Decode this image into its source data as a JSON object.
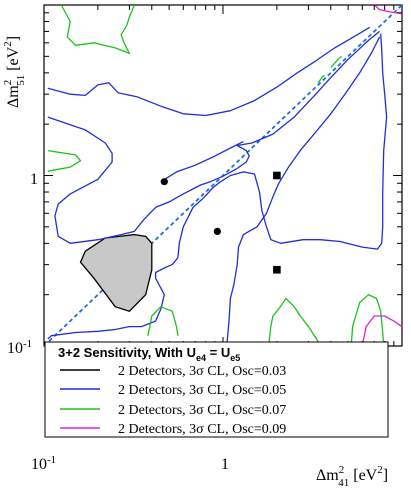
{
  "chart_data": {
    "type": "line",
    "title": "",
    "xlabel_main": "Δm",
    "xlabel_sup": "2",
    "xlabel_sub": "41",
    "xlabel_unit_a": " [eV",
    "xlabel_unit_sup": "2",
    "xlabel_unit_b": "]",
    "ylabel_main": "Δm",
    "ylabel_sup": "2",
    "ylabel_sub": "51",
    "ylabel_unit_a": " [eV",
    "ylabel_unit_sup": "2",
    "ylabel_unit_b": "]",
    "xscale": "log",
    "yscale": "log",
    "xlim": [
      0.1,
      10
    ],
    "ylim": [
      0.1,
      10
    ],
    "x_ticklabels": {
      "t0": "10",
      "t0_exp": "-1",
      "t1": "1"
    },
    "y_ticklabels": {
      "t0": "10",
      "t0_exp": "-1",
      "t1": "1"
    },
    "grid": false,
    "legend": {
      "placement": "bottom-left",
      "title_a": "3+2 Sensitivity, With U",
      "title_sub1": "e4",
      "title_b": " = U",
      "title_sub2": "e5",
      "entries": [
        {
          "label": "2 Detectors, 3σ CL, Osc=0.03",
          "color": "#000000"
        },
        {
          "label": "2 Detectors, 3σ CL, Osc=0.05",
          "color": "#1f2fd6"
        },
        {
          "label": "2 Detectors, 3σ CL, Osc=0.07",
          "color": "#19c419"
        },
        {
          "label": "2 Detectors, 3σ CL, Osc=0.09",
          "color": "#e020e0"
        }
      ]
    },
    "diagonal": {
      "color": "#1f6fd6",
      "style": "dashed",
      "points": [
        [
          0.1,
          0.1
        ],
        [
          10,
          10
        ]
      ]
    },
    "shaded_region": {
      "fill": "#c8c8c8",
      "stroke": "#000000",
      "points": [
        [
          0.17,
          0.36
        ],
        [
          0.22,
          0.43
        ],
        [
          0.32,
          0.45
        ],
        [
          0.37,
          0.44
        ],
        [
          0.4,
          0.4
        ],
        [
          0.4,
          0.28
        ],
        [
          0.37,
          0.2
        ],
        [
          0.3,
          0.16
        ],
        [
          0.25,
          0.17
        ],
        [
          0.19,
          0.25
        ],
        [
          0.16,
          0.31
        ],
        [
          0.17,
          0.36
        ]
      ]
    },
    "markers": {
      "circles": [
        [
          0.47,
          0.92
        ],
        [
          0.93,
          0.47
        ]
      ],
      "squares": [
        [
          2.0,
          1.0
        ],
        [
          2.0,
          0.28
        ]
      ]
    },
    "series": [
      {
        "name": "2 Detectors, 3σ CL, Osc=0.05",
        "color": "#1f2fd6",
        "lines": [
          [
            [
              0.105,
              3.25
            ],
            [
              0.14,
              3.0
            ],
            [
              0.17,
              2.95
            ],
            [
              0.2,
              3.4
            ],
            [
              0.23,
              3.5
            ],
            [
              0.26,
              3.05
            ],
            [
              0.33,
              2.9
            ],
            [
              0.45,
              2.55
            ],
            [
              0.6,
              2.3
            ],
            [
              0.8,
              2.25
            ],
            [
              1.1,
              2.4
            ],
            [
              1.5,
              2.75
            ],
            [
              2.0,
              3.3
            ],
            [
              2.6,
              4.0
            ],
            [
              3.3,
              4.7
            ],
            [
              4.2,
              5.6
            ],
            [
              5.5,
              6.6
            ],
            [
              6.6,
              7.4
            ]
          ],
          [
            [
              0.105,
              2.2
            ],
            [
              0.17,
              1.85
            ],
            [
              0.22,
              1.55
            ],
            [
              0.24,
              1.35
            ],
            [
              0.24,
              1.2
            ],
            [
              0.2,
              0.95
            ],
            [
              0.14,
              0.78
            ],
            [
              0.12,
              0.68
            ],
            [
              0.115,
              0.58
            ],
            [
              0.12,
              0.44
            ],
            [
              0.14,
              0.4
            ],
            [
              0.2,
              0.42
            ],
            [
              0.27,
              0.45
            ],
            [
              0.32,
              0.47
            ],
            [
              0.36,
              0.55
            ],
            [
              0.42,
              0.65
            ],
            [
              0.5,
              0.7
            ],
            [
              0.6,
              0.78
            ],
            [
              0.75,
              0.88
            ],
            [
              0.85,
              0.92
            ],
            [
              1.0,
              0.99
            ],
            [
              1.2,
              1.1
            ],
            [
              1.35,
              1.2
            ],
            [
              1.4,
              1.3
            ],
            [
              1.35,
              1.4
            ],
            [
              1.2,
              1.5
            ],
            [
              1.45,
              1.55
            ],
            [
              1.9,
              1.75
            ],
            [
              2.5,
              2.2
            ],
            [
              3.2,
              2.9
            ],
            [
              4.0,
              3.75
            ],
            [
              5.0,
              4.8
            ],
            [
              6.5,
              6.2
            ],
            [
              7.5,
              7.0
            ]
          ],
          [
            [
              0.45,
              0.92
            ],
            [
              0.55,
              1.05
            ],
            [
              0.7,
              1.15
            ],
            [
              0.9,
              1.3
            ],
            [
              1.1,
              1.45
            ],
            [
              1.3,
              1.58
            ]
          ],
          [
            [
              0.56,
              0.33
            ],
            [
              0.52,
              0.3
            ],
            [
              0.48,
              0.29
            ],
            [
              0.42,
              0.27
            ],
            [
              0.42,
              0.25
            ],
            [
              0.47,
              0.2
            ],
            [
              0.45,
              0.165
            ],
            [
              0.42,
              0.14
            ],
            [
              0.35,
              0.13
            ],
            [
              0.3,
              0.13
            ],
            [
              0.25,
              0.125
            ],
            [
              0.2,
              0.122
            ],
            [
              0.15,
              0.12
            ],
            [
              0.11,
              0.115
            ],
            [
              0.105,
              0.11
            ]
          ],
          [
            [
              0.56,
              0.33
            ],
            [
              0.57,
              0.4
            ],
            [
              0.6,
              0.5
            ],
            [
              0.68,
              0.65
            ],
            [
              0.78,
              0.74
            ],
            [
              0.88,
              0.85
            ],
            [
              0.97,
              0.92
            ],
            [
              1.1,
              1.0
            ],
            [
              1.3,
              1.05
            ],
            [
              1.5,
              1.02
            ],
            [
              1.6,
              0.8
            ],
            [
              1.65,
              0.62
            ],
            [
              1.75,
              0.5
            ],
            [
              1.85,
              0.42
            ],
            [
              2.1,
              0.4
            ],
            [
              2.8,
              0.42
            ],
            [
              3.5,
              0.42
            ],
            [
              4.5,
              0.41
            ],
            [
              6.0,
              0.38
            ],
            [
              7.3,
              0.37
            ],
            [
              7.7,
              0.4
            ],
            [
              7.8,
              0.5
            ],
            [
              7.8,
              0.8
            ],
            [
              7.9,
              1.4
            ],
            [
              8.2,
              2.2
            ],
            [
              8.0,
              3.0
            ],
            [
              7.8,
              4.0
            ],
            [
              7.7,
              5.5
            ],
            [
              7.6,
              6.8
            ]
          ],
          [
            [
              1.05,
              0.1
            ],
            [
              1.08,
              0.14
            ],
            [
              1.1,
              0.19
            ],
            [
              1.15,
              0.23
            ],
            [
              1.2,
              0.3
            ],
            [
              1.22,
              0.38
            ],
            [
              1.3,
              0.45
            ],
            [
              1.55,
              0.5
            ],
            [
              1.75,
              0.6
            ],
            [
              1.9,
              0.75
            ],
            [
              2.05,
              0.9
            ],
            [
              2.3,
              1.1
            ],
            [
              2.7,
              1.4
            ],
            [
              3.3,
              1.8
            ],
            [
              4.0,
              2.3
            ],
            [
              4.8,
              3.0
            ],
            [
              5.8,
              4.0
            ],
            [
              6.8,
              5.3
            ],
            [
              7.5,
              6.5
            ]
          ]
        ]
      },
      {
        "name": "2 Detectors, 3σ CL, Osc=0.07",
        "color": "#19c419",
        "lines": [
          [
            [
              0.125,
              10.0
            ],
            [
              0.14,
              8.0
            ],
            [
              0.135,
              6.5
            ],
            [
              0.15,
              5.8
            ],
            [
              0.19,
              6.0
            ],
            [
              0.25,
              5.6
            ],
            [
              0.3,
              5.2
            ],
            [
              0.28,
              6.0
            ],
            [
              0.27,
              6.7
            ],
            [
              0.29,
              7.6
            ],
            [
              0.3,
              8.5
            ],
            [
              0.32,
              10.0
            ]
          ],
          [
            [
              0.105,
              1.4
            ],
            [
              0.15,
              1.32
            ],
            [
              0.16,
              1.22
            ],
            [
              0.14,
              1.12
            ],
            [
              0.105,
              1.06
            ]
          ],
          [
            [
              3.4,
              3.5
            ],
            [
              3.6,
              3.8
            ],
            [
              3.7,
              3.85
            ]
          ],
          [
            [
              4.0,
              4.3
            ],
            [
              4.4,
              4.8
            ],
            [
              4.6,
              5.0
            ]
          ],
          [
            [
              1.8,
              0.1
            ],
            [
              1.85,
              0.13
            ],
            [
              1.9,
              0.15
            ],
            [
              2.05,
              0.165
            ],
            [
              2.25,
              0.19
            ],
            [
              2.5,
              0.17
            ],
            [
              2.7,
              0.15
            ],
            [
              3.0,
              0.13
            ],
            [
              3.3,
              0.112
            ],
            [
              3.5,
              0.1
            ]
          ],
          [
            [
              5.2,
              0.1
            ],
            [
              5.3,
              0.13
            ],
            [
              5.8,
              0.18
            ],
            [
              6.5,
              0.2
            ],
            [
              7.2,
              0.19
            ],
            [
              7.6,
              0.16
            ],
            [
              7.8,
              0.12
            ],
            [
              7.9,
              0.1
            ]
          ],
          [
            [
              0.38,
              0.115
            ],
            [
              0.39,
              0.13
            ],
            [
              0.4,
              0.15
            ],
            [
              0.45,
              0.17
            ],
            [
              0.52,
              0.16
            ],
            [
              0.55,
              0.13
            ],
            [
              0.56,
              0.115
            ]
          ]
        ]
      },
      {
        "name": "2 Detectors, 3σ CL, Osc=0.09",
        "color": "#e020e0",
        "lines": [
          [
            [
              7.0,
              10.0
            ],
            [
              7.5,
              9.4
            ],
            [
              8.6,
              9.1
            ],
            [
              10.0,
              8.9
            ]
          ],
          [
            [
              6.0,
              0.1
            ],
            [
              6.3,
              0.13
            ],
            [
              7.0,
              0.15
            ],
            [
              8.0,
              0.15
            ],
            [
              9.0,
              0.14
            ],
            [
              10.0,
              0.13
            ]
          ]
        ]
      }
    ]
  }
}
